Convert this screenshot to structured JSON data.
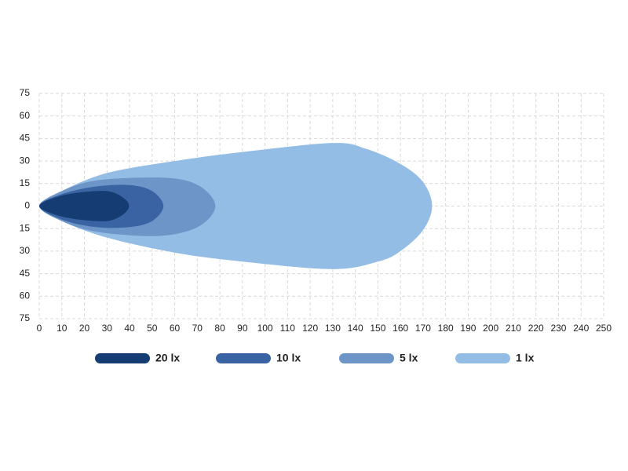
{
  "chart_data": {
    "type": "contour",
    "xlim": [
      0,
      250
    ],
    "xticks": [
      0,
      10,
      20,
      30,
      40,
      50,
      60,
      70,
      80,
      90,
      100,
      110,
      120,
      130,
      140,
      150,
      160,
      170,
      180,
      190,
      200,
      210,
      220,
      230,
      240,
      250
    ],
    "ylim": [
      -75,
      75
    ],
    "yticks": [
      75,
      60,
      45,
      30,
      15,
      0,
      {
        "value": -15,
        "label": "15"
      },
      {
        "value": -30,
        "label": "30"
      },
      {
        "value": -45,
        "label": "45"
      },
      {
        "value": -60,
        "label": "60"
      },
      {
        "value": -75,
        "label": "75"
      }
    ],
    "grid": true,
    "series": [
      {
        "name": "20 lx",
        "color": "#163d73",
        "x": [
          0,
          10,
          25,
          33,
          39,
          39,
          33,
          25,
          10
        ],
        "values": [
          0,
          7,
          10,
          9,
          3,
          -3,
          -9,
          -10,
          -7
        ]
      },
      {
        "name": "10 lx",
        "color": "#3a63a3",
        "x": [
          0,
          10,
          25,
          40,
          50,
          55,
          50,
          40,
          25,
          10
        ],
        "values": [
          0,
          8,
          13,
          14,
          10,
          0,
          -10,
          -14,
          -14,
          -9
        ]
      },
      {
        "name": "5 lx",
        "color": "#6d95c8",
        "x": [
          0,
          10,
          25,
          50,
          65,
          74,
          78,
          74,
          65,
          50,
          25,
          10
        ],
        "values": [
          0,
          10,
          17,
          19,
          17,
          10,
          0,
          -10,
          -17,
          -20,
          -17,
          -10
        ]
      },
      {
        "name": "1 lx",
        "color": "#94bde6",
        "x": [
          0,
          10,
          30,
          60,
          90,
          130,
          145,
          160,
          170,
          174,
          170,
          160,
          150,
          130,
          90,
          60,
          30,
          10
        ],
        "values": [
          0,
          10,
          22,
          30,
          36,
          42,
          38,
          28,
          16,
          0,
          -16,
          -30,
          -37,
          -42,
          -37,
          -31,
          -21,
          -10
        ]
      }
    ]
  }
}
